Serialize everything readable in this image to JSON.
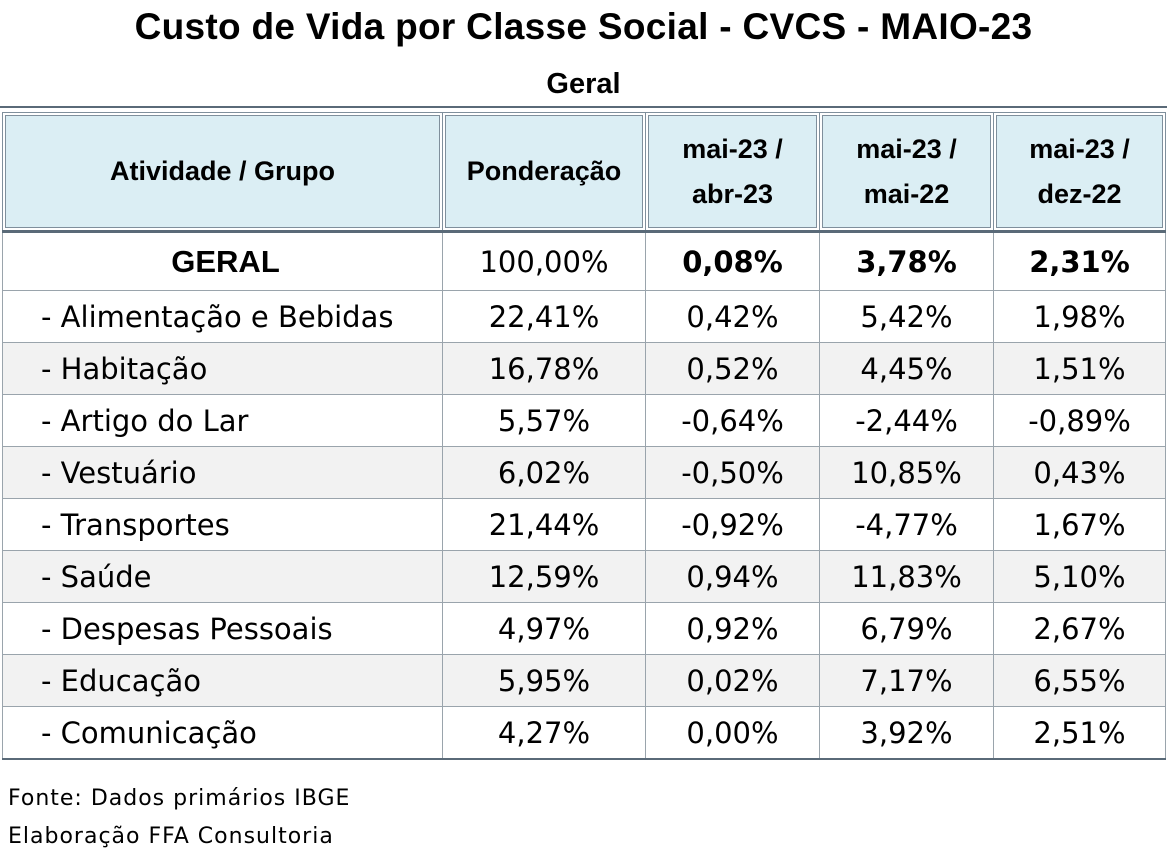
{
  "title": "Custo de Vida por Classe Social - CVCS - MAIO-23",
  "subtitle": "Geral",
  "table": {
    "headers": [
      [
        "Atividade / Grupo"
      ],
      [
        "Ponderação"
      ],
      [
        "mai-23  /",
        "abr-23"
      ],
      [
        "mai-23  /",
        "mai-22"
      ],
      [
        "mai-23  /",
        "dez-22"
      ]
    ],
    "total_row": {
      "label": "GERAL",
      "values": [
        "100,00%",
        "0,08%",
        "3,78%",
        "2,31%"
      ]
    },
    "rows": [
      {
        "label": "- Alimentação e Bebidas",
        "values": [
          "22,41%",
          "0,42%",
          "5,42%",
          "1,98%"
        ]
      },
      {
        "label": "- Habitação",
        "values": [
          "16,78%",
          "0,52%",
          "4,45%",
          "1,51%"
        ]
      },
      {
        "label": "- Artigo do Lar",
        "values": [
          "5,57%",
          "-0,64%",
          "-2,44%",
          "-0,89%"
        ]
      },
      {
        "label": "- Vestuário",
        "values": [
          "6,02%",
          "-0,50%",
          "10,85%",
          "0,43%"
        ]
      },
      {
        "label": "- Transportes",
        "values": [
          "21,44%",
          "-0,92%",
          "-4,77%",
          "1,67%"
        ]
      },
      {
        "label": "- Saúde",
        "values": [
          "12,59%",
          "0,94%",
          "11,83%",
          "5,10%"
        ]
      },
      {
        "label": "- Despesas Pessoais",
        "values": [
          "4,97%",
          "0,92%",
          "6,79%",
          "2,67%"
        ]
      },
      {
        "label": "- Educação",
        "values": [
          "5,95%",
          "0,02%",
          "7,17%",
          "6,55%"
        ]
      },
      {
        "label": "- Comunicação",
        "values": [
          "4,27%",
          "0,00%",
          "3,92%",
          "2,51%"
        ]
      }
    ]
  },
  "footer": {
    "source": "Fonte: Dados primários IBGE",
    "credit": "Elaboração FFA Consultoria"
  },
  "colors": {
    "header_bg": "#dbeef4",
    "stripe_bg": "#f2f2f2",
    "border": "#7f8f9c"
  }
}
